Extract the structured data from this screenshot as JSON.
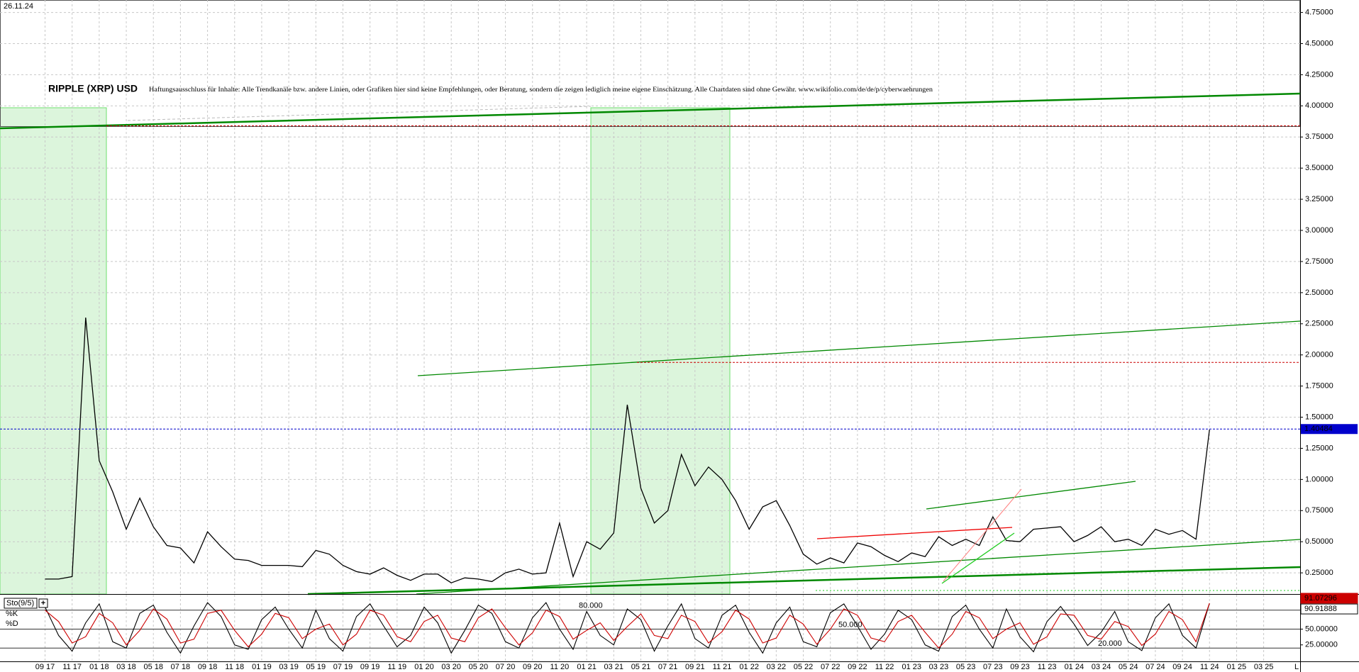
{
  "chart_data": [
    {
      "type": "line",
      "date": "26.11.24",
      "title": "RIPPLE (XRP) USD",
      "subtitle": "Haftungsausschluss für Inhalte: Alle Trendkanäle bzw. andere Linien, oder Grafiken hier sind keine Empfehlungen, oder Beratung, sondern die zeigen lediglich meine eigene Einschätzung. Alle Chartdaten sind ohne Gewähr. www.wikifolio.com/de/de/p/cyberwaehrungen",
      "categories": [
        "09 17",
        null,
        "11 17",
        null,
        "01 18",
        null,
        "03 18",
        null,
        "05 18",
        null,
        "07 18",
        null,
        "09 18",
        null,
        "11 18",
        null,
        "01 19",
        null,
        "03 19",
        null,
        "05 19",
        null,
        "07 19",
        null,
        "09 19",
        null,
        "11 19",
        null,
        "01 20",
        null,
        "03 20",
        null,
        "05 20",
        null,
        "07 20",
        null,
        "09 20",
        null,
        "11 20",
        null,
        "01 21",
        null,
        "03 21",
        null,
        "05 21",
        null,
        "07 21",
        null,
        "09 21",
        null,
        "11 21",
        null,
        "01 22",
        null,
        "03 22",
        null,
        "05 22",
        null,
        "07 22",
        null,
        "09 22",
        null,
        "11 22",
        null,
        "01 23",
        null,
        "03 23",
        null,
        "05 23",
        null,
        "07 23",
        null,
        "09 23",
        null,
        "11 23",
        null,
        "01 24",
        null,
        "03 24",
        null,
        "05 24",
        null,
        "07 24",
        null,
        "09 24",
        null,
        "11 24",
        null,
        "01 25",
        null,
        "03 25",
        null
      ],
      "values": [
        0.2,
        0.2,
        0.22,
        2.3,
        1.15,
        0.9,
        0.6,
        0.85,
        0.62,
        0.47,
        0.45,
        0.33,
        0.58,
        0.46,
        0.36,
        0.35,
        0.31,
        0.31,
        0.31,
        0.3,
        0.43,
        0.4,
        0.31,
        0.26,
        0.24,
        0.29,
        0.23,
        0.19,
        0.24,
        0.24,
        0.17,
        0.21,
        0.2,
        0.18,
        0.25,
        0.28,
        0.24,
        0.25,
        0.65,
        0.22,
        0.5,
        0.44,
        0.57,
        1.6,
        0.93,
        0.65,
        0.75,
        1.2,
        0.95,
        1.1,
        1.0,
        0.83,
        0.6,
        0.78,
        0.83,
        0.63,
        0.4,
        0.32,
        0.37,
        0.33,
        0.49,
        0.46,
        0.39,
        0.34,
        0.41,
        0.38,
        0.54,
        0.47,
        0.52,
        0.47,
        0.7,
        0.51,
        0.5,
        0.6,
        0.61,
        0.62,
        0.5,
        0.55,
        0.62,
        0.5,
        0.52,
        0.47,
        0.6,
        0.56,
        0.59,
        0.52,
        1.4,
        null,
        null,
        null,
        null,
        null
      ],
      "color": "#000000",
      "ylim": [
        0.08,
        4.85
      ],
      "yticks": [
        {
          "value": 0.25,
          "label": "0.25000"
        },
        {
          "value": 0.5,
          "label": "0.50000"
        },
        {
          "value": 0.75,
          "label": "0.75000"
        },
        {
          "value": 1,
          "label": "1.00000"
        },
        {
          "value": 1.25,
          "label": "1.25000"
        },
        {
          "value": 1.5,
          "label": "1.50000"
        },
        {
          "value": 1.75,
          "label": "1.75000"
        },
        {
          "value": 2,
          "label": "2.00000"
        },
        {
          "value": 2.25,
          "label": "2.25000"
        },
        {
          "value": 2.5,
          "label": "2.50000"
        },
        {
          "value": 2.75,
          "label": "2.75000"
        },
        {
          "value": 3,
          "label": "3.00000"
        },
        {
          "value": 3.25,
          "label": "3.25000"
        },
        {
          "value": 3.5,
          "label": "3.50000"
        },
        {
          "value": 3.75,
          "label": "3.75000"
        },
        {
          "value": 4,
          "label": "4.00000"
        },
        {
          "value": 4.25,
          "label": "4.25000"
        },
        {
          "value": 4.5,
          "label": "4.50000"
        },
        {
          "value": 4.75,
          "label": "4.75000"
        }
      ],
      "grid": true,
      "last_value": 1.40484,
      "last_value_color": "#0000cc",
      "levels": [
        3.84,
        1.94
      ],
      "levels_color": "#cc0000"
    },
    {
      "type": "line",
      "title": "Sto(9/5)",
      "series": [
        {
          "name": "%K",
          "color": "#000000",
          "values": [
            85,
            40,
            15,
            60,
            90,
            30,
            20,
            75,
            88,
            45,
            12,
            55,
            92,
            70,
            25,
            18,
            65,
            85,
            50,
            20,
            80,
            35,
            15,
            70,
            90,
            55,
            22,
            40,
            85,
            60,
            12,
            48,
            88,
            75,
            30,
            20,
            68,
            92,
            50,
            18,
            78,
            40,
            25,
            82,
            65,
            15,
            55,
            90,
            35,
            20,
            72,
            88,
            45,
            12,
            60,
            85,
            30,
            22,
            76,
            90,
            55,
            18,
            42,
            80,
            65,
            25,
            15,
            70,
            88,
            50,
            20,
            82,
            38,
            14,
            62,
            86,
            58,
            24,
            45,
            78,
            30,
            16,
            68,
            90,
            40,
            20,
            90.91888,
            null,
            null,
            null,
            null,
            null
          ]
        },
        {
          "name": "%D",
          "color": "#cc0000",
          "values": [
            80,
            62,
            28,
            38,
            75,
            60,
            25,
            48,
            82,
            66,
            28,
            34,
            75,
            80,
            48,
            22,
            42,
            75,
            68,
            35,
            50,
            58,
            25,
            42,
            80,
            72,
            38,
            30,
            62,
            72,
            36,
            30,
            68,
            82,
            52,
            25,
            44,
            80,
            70,
            34,
            48,
            60,
            32,
            54,
            74,
            40,
            35,
            72,
            62,
            28,
            46,
            80,
            66,
            28,
            36,
            72,
            58,
            26,
            50,
            82,
            72,
            36,
            30,
            62,
            72,
            45,
            20,
            42,
            78,
            68,
            35,
            50,
            60,
            26,
            38,
            74,
            72,
            40,
            34,
            62,
            54,
            24,
            42,
            78,
            65,
            30,
            91.07296,
            null,
            null,
            null,
            null,
            null
          ]
        }
      ],
      "ylim": [
        0,
        100
      ],
      "yticks": [
        {
          "value": 25,
          "label": "25.00000"
        },
        {
          "value": 50,
          "label": "50.00000"
        }
      ],
      "levels": [
        {
          "value": 80,
          "label": "80.000"
        },
        {
          "value": 50,
          "label": "50.000"
        },
        {
          "value": 20,
          "label": "20.000"
        }
      ],
      "x_end_label": "L"
    }
  ]
}
